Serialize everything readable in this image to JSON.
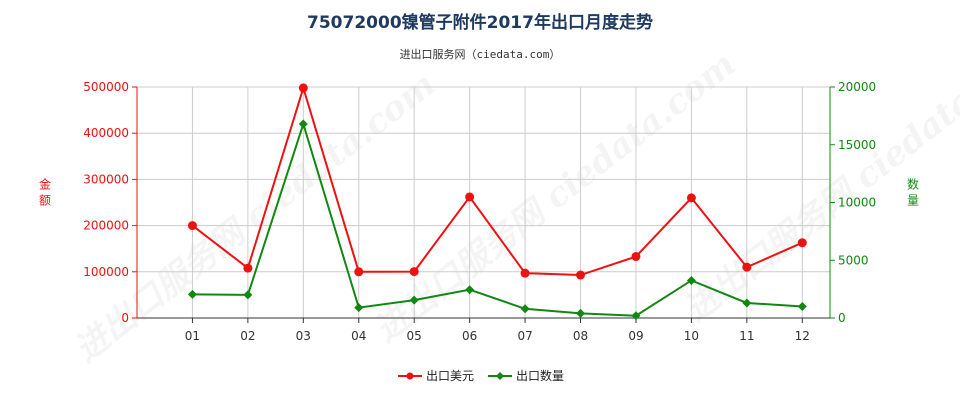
{
  "title": "75072000镍管子附件2017年出口月度走势",
  "subtitle": "进出口服务网（ciedata.com）",
  "watermark": "进出口服务网 ciedata.com",
  "colors": {
    "amount": "#ee1111",
    "quantity": "#118811",
    "grid": "#cccccc",
    "axis": "#333333"
  },
  "chart_data": {
    "type": "line",
    "title": "75072000镍管子附件2017年出口月度走势",
    "categories": [
      "01",
      "02",
      "03",
      "04",
      "05",
      "06",
      "07",
      "08",
      "09",
      "10",
      "11",
      "12"
    ],
    "y_left": {
      "label": "金额",
      "lim": [
        0,
        500000
      ],
      "ticks": [
        0,
        100000,
        200000,
        300000,
        400000,
        500000
      ],
      "tick_labels": [
        "0",
        "100000",
        "200000",
        "300000",
        "400000",
        "500000"
      ]
    },
    "y_right": {
      "label": "数量",
      "lim": [
        0,
        20000
      ],
      "ticks": [
        0,
        5000,
        10000,
        15000,
        20000
      ],
      "tick_labels": [
        "0",
        "5000",
        "10000",
        "15000",
        "20000"
      ]
    },
    "grid": true,
    "legend_position": "bottom-center",
    "series": [
      {
        "name": "出口美元",
        "axis": "left",
        "color": "#ee1111",
        "values": [
          200000,
          108000,
          498000,
          100000,
          100500,
          262000,
          97000,
          93000,
          133000,
          260000,
          110000,
          163000
        ]
      },
      {
        "name": "出口数量",
        "axis": "right",
        "color": "#118811",
        "values": [
          2050,
          2000,
          16800,
          900,
          1550,
          2450,
          800,
          400,
          200,
          3250,
          1300,
          1000
        ]
      }
    ]
  }
}
